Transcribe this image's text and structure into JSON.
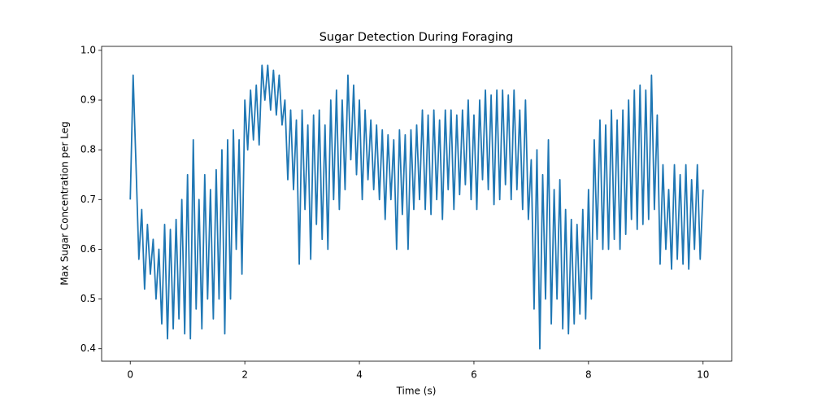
{
  "chart_data": {
    "type": "line",
    "title": "Sugar Detection During Foraging",
    "x_label": "Time (s)",
    "y_label": "Max Sugar Concentration per Leg",
    "color": "#1f77b4",
    "x": [
      0,
      0.05,
      0.1,
      0.15,
      0.2,
      0.25,
      0.3,
      0.35,
      0.4,
      0.45,
      0.5,
      0.55,
      0.6,
      0.65,
      0.7,
      0.75,
      0.8,
      0.85,
      0.9,
      0.95,
      1,
      1.05,
      1.1,
      1.15,
      1.2,
      1.25,
      1.3,
      1.35,
      1.4,
      1.45,
      1.5,
      1.55,
      1.6,
      1.65,
      1.7,
      1.75,
      1.8,
      1.85,
      1.9,
      1.95,
      2,
      2.05,
      2.1,
      2.15,
      2.2,
      2.25,
      2.3,
      2.35,
      2.4,
      2.45,
      2.5,
      2.55,
      2.6,
      2.65,
      2.7,
      2.75,
      2.8,
      2.85,
      2.9,
      2.95,
      3,
      3.05,
      3.1,
      3.15,
      3.2,
      3.25,
      3.3,
      3.35,
      3.4,
      3.45,
      3.5,
      3.55,
      3.6,
      3.65,
      3.7,
      3.75,
      3.8,
      3.85,
      3.9,
      3.95,
      4,
      4.05,
      4.1,
      4.15,
      4.2,
      4.25,
      4.3,
      4.35,
      4.4,
      4.45,
      4.5,
      4.55,
      4.6,
      4.65,
      4.7,
      4.75,
      4.8,
      4.85,
      4.9,
      4.95,
      5,
      5.05,
      5.1,
      5.15,
      5.2,
      5.25,
      5.3,
      5.35,
      5.4,
      5.45,
      5.5,
      5.55,
      5.6,
      5.65,
      5.7,
      5.75,
      5.8,
      5.85,
      5.9,
      5.95,
      6,
      6.05,
      6.1,
      6.15,
      6.2,
      6.25,
      6.3,
      6.35,
      6.4,
      6.45,
      6.5,
      6.55,
      6.6,
      6.65,
      6.7,
      6.75,
      6.8,
      6.85,
      6.9,
      6.95,
      7,
      7.05,
      7.1,
      7.15,
      7.2,
      7.25,
      7.3,
      7.35,
      7.4,
      7.45,
      7.5,
      7.55,
      7.6,
      7.65,
      7.7,
      7.75,
      7.8,
      7.85,
      7.9,
      7.95,
      8,
      8.05,
      8.1,
      8.15,
      8.2,
      8.25,
      8.3,
      8.35,
      8.4,
      8.45,
      8.5,
      8.55,
      8.6,
      8.65,
      8.7,
      8.75,
      8.8,
      8.85,
      8.9,
      8.95,
      9,
      9.05,
      9.1,
      9.15,
      9.2,
      9.25,
      9.3,
      9.35,
      9.4,
      9.45,
      9.5,
      9.55,
      9.6,
      9.65,
      9.7,
      9.75,
      9.8,
      9.85,
      9.9,
      9.95,
      10
    ],
    "values": [
      0.7,
      0.95,
      0.77,
      0.58,
      0.68,
      0.52,
      0.65,
      0.55,
      0.62,
      0.5,
      0.6,
      0.45,
      0.65,
      0.42,
      0.64,
      0.44,
      0.66,
      0.46,
      0.7,
      0.43,
      0.75,
      0.42,
      0.82,
      0.48,
      0.7,
      0.44,
      0.75,
      0.5,
      0.72,
      0.46,
      0.76,
      0.5,
      0.8,
      0.43,
      0.82,
      0.5,
      0.84,
      0.6,
      0.82,
      0.55,
      0.9,
      0.8,
      0.92,
      0.82,
      0.93,
      0.81,
      0.97,
      0.9,
      0.97,
      0.88,
      0.96,
      0.87,
      0.95,
      0.85,
      0.9,
      0.74,
      0.88,
      0.72,
      0.86,
      0.57,
      0.88,
      0.68,
      0.85,
      0.58,
      0.87,
      0.65,
      0.88,
      0.62,
      0.85,
      0.6,
      0.9,
      0.7,
      0.92,
      0.68,
      0.9,
      0.72,
      0.95,
      0.78,
      0.93,
      0.75,
      0.9,
      0.7,
      0.88,
      0.74,
      0.86,
      0.72,
      0.85,
      0.7,
      0.84,
      0.66,
      0.83,
      0.7,
      0.82,
      0.6,
      0.84,
      0.67,
      0.83,
      0.6,
      0.84,
      0.68,
      0.85,
      0.7,
      0.88,
      0.68,
      0.87,
      0.67,
      0.88,
      0.7,
      0.86,
      0.66,
      0.88,
      0.72,
      0.88,
      0.68,
      0.87,
      0.71,
      0.88,
      0.73,
      0.9,
      0.7,
      0.87,
      0.68,
      0.9,
      0.74,
      0.92,
      0.72,
      0.91,
      0.69,
      0.92,
      0.7,
      0.92,
      0.73,
      0.91,
      0.7,
      0.92,
      0.72,
      0.88,
      0.68,
      0.9,
      0.66,
      0.78,
      0.48,
      0.8,
      0.4,
      0.75,
      0.5,
      0.82,
      0.45,
      0.72,
      0.5,
      0.74,
      0.44,
      0.68,
      0.43,
      0.66,
      0.45,
      0.65,
      0.47,
      0.68,
      0.46,
      0.72,
      0.5,
      0.82,
      0.62,
      0.86,
      0.6,
      0.85,
      0.6,
      0.88,
      0.62,
      0.86,
      0.6,
      0.88,
      0.63,
      0.9,
      0.66,
      0.92,
      0.64,
      0.93,
      0.65,
      0.92,
      0.66,
      0.95,
      0.68,
      0.87,
      0.57,
      0.77,
      0.6,
      0.72,
      0.56,
      0.77,
      0.58,
      0.75,
      0.57,
      0.77,
      0.56,
      0.74,
      0.6,
      0.77,
      0.58,
      0.72
    ],
    "xlim": [
      -0.5,
      10.5
    ],
    "ylim": [
      0.375,
      1.008
    ],
    "xticks": [
      0,
      2,
      4,
      6,
      8,
      10
    ],
    "yticks": [
      0.4,
      0.5,
      0.6,
      0.7,
      0.8,
      0.9,
      {
        "value": 1,
        "label": "1.0"
      }
    ]
  }
}
